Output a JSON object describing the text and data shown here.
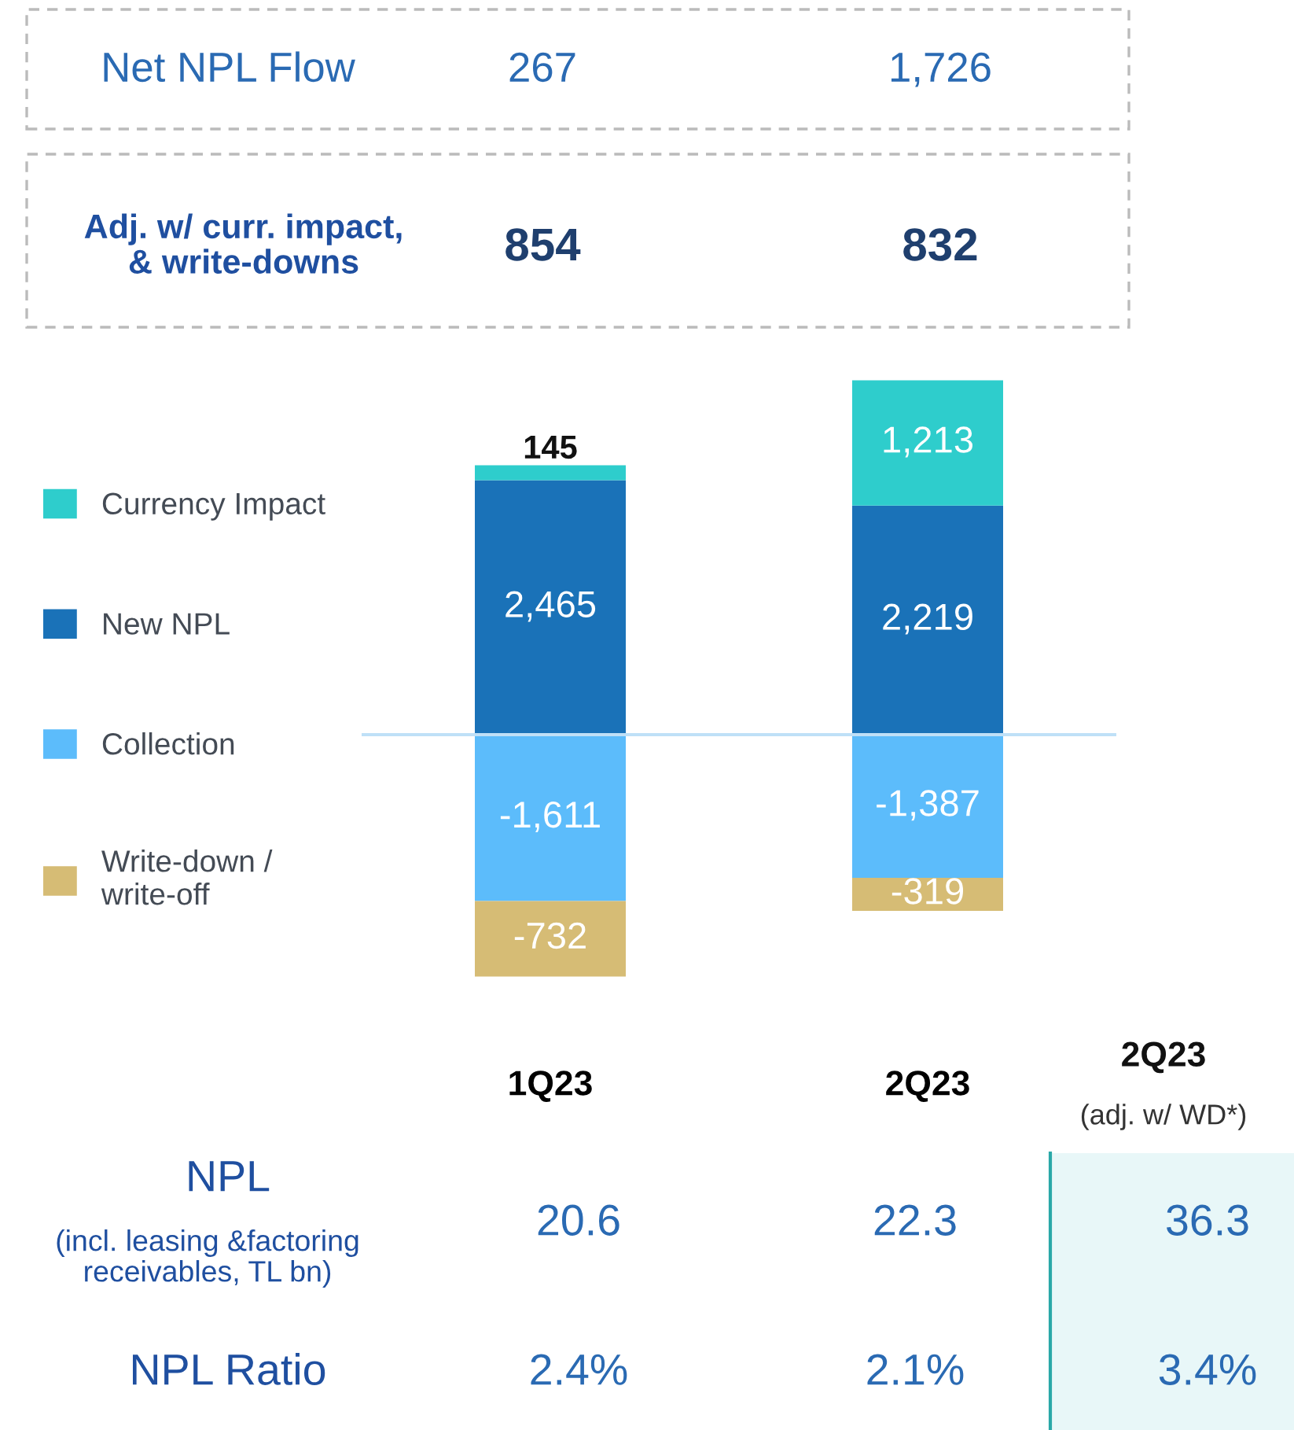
{
  "chart_data": {
    "type": "bar",
    "stacked": true,
    "categories": [
      "1Q23",
      "2Q23"
    ],
    "series": [
      {
        "name": "New NPL",
        "color": "#1a72b8",
        "values": [
          2465,
          2219
        ],
        "value_labels": [
          "2,465",
          "2,219"
        ]
      },
      {
        "name": "Currency Impact",
        "color": "#2ecdcc",
        "values": [
          145,
          1213
        ],
        "value_labels": [
          "145",
          "1,213"
        ]
      },
      {
        "name": "Collection",
        "color": "#5cbcfb",
        "values": [
          -1611,
          -1387
        ],
        "value_labels": [
          "-1,611",
          "-1,387"
        ]
      },
      {
        "name": "Write-down / \nwrite-off",
        "color": "#d6bc75",
        "values": [
          -732,
          -319
        ],
        "value_labels": [
          "-732",
          "-319"
        ]
      }
    ],
    "legend": "left",
    "ref_lines": [
      {
        "axis": "y",
        "value": 0,
        "color": "#bfe0f7"
      }
    ],
    "annotations": [
      "Net NPL Flow",
      "267",
      "1,726",
      "Adj. w/ curr. impact,\n& write-downs",
      "854",
      "832",
      "2Q23",
      "(adj. w/ WD*)",
      "NPL",
      "(incl. leasing &factoring\nreceivables, TL bn)",
      "20.6",
      "22.3",
      "36.3",
      "NPL Ratio",
      "2.4%",
      "2.1%",
      "3.4%"
    ]
  }
}
